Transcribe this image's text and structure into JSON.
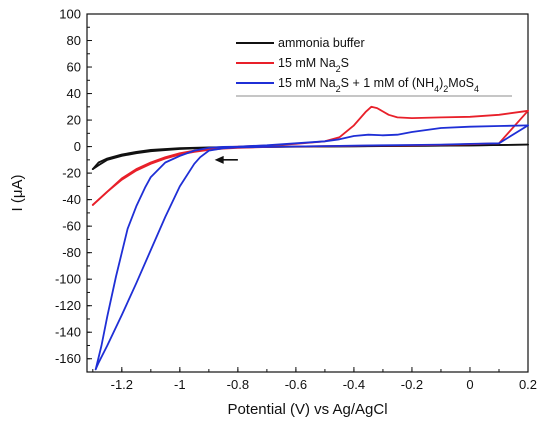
{
  "chart_data": {
    "type": "line",
    "xlabel": "Potential (V) vs Ag/AgCl",
    "ylabel": "I (μA)",
    "xlim": [
      -1.32,
      0.2
    ],
    "ylim": [
      -170,
      100
    ],
    "x_ticks": [
      -1.2,
      -1.0,
      -0.8,
      -0.6,
      -0.4,
      -0.2,
      0,
      0.2
    ],
    "x_tick_labels": [
      "-1.2",
      "-1",
      "-0.8",
      "-0.6",
      "-0.4",
      "-0.2",
      "0",
      "0.2"
    ],
    "y_ticks": [
      -160,
      -140,
      -120,
      -100,
      -80,
      -60,
      -40,
      -20,
      0,
      20,
      40,
      60,
      80,
      100
    ],
    "y_tick_labels": [
      "-160",
      "-140",
      "-120",
      "-100",
      "-80",
      "-60",
      "-40",
      "-20",
      "0",
      "20",
      "40",
      "60",
      "80",
      "100"
    ],
    "grid": false,
    "legend_position": "top-right",
    "annotations": [
      {
        "type": "arrow",
        "direction": "left",
        "x_start": -0.8,
        "x_end": -0.88,
        "y": -10
      }
    ],
    "series": [
      {
        "name": "ammonia buffer",
        "color": "#111111",
        "forward": [
          [
            -1.3,
            -17
          ],
          [
            -1.28,
            -12
          ],
          [
            -1.25,
            -9
          ],
          [
            -1.2,
            -6
          ],
          [
            -1.15,
            -4
          ],
          [
            -1.1,
            -2.5
          ],
          [
            -1.0,
            -1.2
          ],
          [
            -0.9,
            -0.6
          ],
          [
            -0.8,
            -0.2
          ],
          [
            -0.6,
            0.1
          ],
          [
            -0.4,
            0.3
          ],
          [
            -0.2,
            0.6
          ],
          [
            0,
            0.9
          ],
          [
            0.2,
            1.5
          ]
        ],
        "reverse": [
          [
            0.2,
            1.5
          ],
          [
            0,
            0.8
          ],
          [
            -0.2,
            0.5
          ],
          [
            -0.4,
            0.2
          ],
          [
            -0.6,
            -0.1
          ],
          [
            -0.8,
            -0.5
          ],
          [
            -0.9,
            -1
          ],
          [
            -1.0,
            -1.8
          ],
          [
            -1.1,
            -3.5
          ],
          [
            -1.15,
            -5
          ],
          [
            -1.2,
            -7
          ],
          [
            -1.25,
            -10
          ],
          [
            -1.28,
            -14
          ],
          [
            -1.3,
            -17
          ]
        ]
      },
      {
        "name": "15 mM Na2S",
        "color": "#e8202a",
        "forward": [
          [
            -1.3,
            -44
          ],
          [
            -1.25,
            -34
          ],
          [
            -1.2,
            -24
          ],
          [
            -1.15,
            -17
          ],
          [
            -1.1,
            -12
          ],
          [
            -1.05,
            -8
          ],
          [
            -1.0,
            -5
          ],
          [
            -0.95,
            -3
          ],
          [
            -0.9,
            -1.5
          ],
          [
            -0.85,
            -0.5
          ],
          [
            -0.8,
            0
          ],
          [
            -0.7,
            0.8
          ],
          [
            -0.6,
            2
          ],
          [
            -0.5,
            4
          ],
          [
            -0.45,
            7
          ],
          [
            -0.4,
            16
          ],
          [
            -0.36,
            26
          ],
          [
            -0.34,
            30
          ],
          [
            -0.32,
            29
          ],
          [
            -0.28,
            24
          ],
          [
            -0.25,
            22
          ],
          [
            -0.2,
            21.5
          ],
          [
            -0.1,
            22
          ],
          [
            0,
            22.5
          ],
          [
            0.1,
            24
          ],
          [
            0.2,
            27
          ]
        ],
        "reverse": [
          [
            0.2,
            27
          ],
          [
            0.1,
            2.5
          ],
          [
            0,
            1.8
          ],
          [
            -0.1,
            1.3
          ],
          [
            -0.2,
            1
          ],
          [
            -0.3,
            0.8
          ],
          [
            -0.4,
            0.5
          ],
          [
            -0.5,
            0.3
          ],
          [
            -0.6,
            0.1
          ],
          [
            -0.7,
            -0.3
          ],
          [
            -0.8,
            -1
          ],
          [
            -0.85,
            -1.5
          ],
          [
            -0.9,
            -2.5
          ],
          [
            -0.95,
            -4
          ],
          [
            -1.0,
            -6
          ],
          [
            -1.05,
            -9
          ],
          [
            -1.1,
            -13
          ],
          [
            -1.15,
            -18
          ],
          [
            -1.2,
            -25
          ],
          [
            -1.25,
            -34
          ],
          [
            -1.3,
            -44
          ]
        ]
      },
      {
        "name": "15 mM Na2S + 1 mM of (NH4)2MoS4",
        "color": "#1f2fd6",
        "forward": [
          [
            -1.29,
            -168
          ],
          [
            -1.27,
            -150
          ],
          [
            -1.25,
            -128
          ],
          [
            -1.22,
            -98
          ],
          [
            -1.2,
            -80
          ],
          [
            -1.18,
            -62
          ],
          [
            -1.15,
            -45
          ],
          [
            -1.12,
            -31
          ],
          [
            -1.1,
            -23
          ],
          [
            -1.05,
            -12
          ],
          [
            -1.0,
            -7
          ],
          [
            -0.95,
            -3
          ],
          [
            -0.9,
            -1
          ],
          [
            -0.85,
            -0.2
          ],
          [
            -0.8,
            0
          ],
          [
            -0.7,
            1
          ],
          [
            -0.6,
            2.5
          ],
          [
            -0.5,
            4
          ],
          [
            -0.45,
            5.5
          ],
          [
            -0.4,
            8
          ],
          [
            -0.35,
            9
          ],
          [
            -0.3,
            8.5
          ],
          [
            -0.25,
            9
          ],
          [
            -0.2,
            11
          ],
          [
            -0.1,
            14
          ],
          [
            0,
            15
          ],
          [
            0.1,
            15.5
          ],
          [
            0.2,
            16
          ]
        ],
        "reverse": [
          [
            0.2,
            16
          ],
          [
            0.1,
            2.5
          ],
          [
            0,
            2
          ],
          [
            -0.1,
            1.5
          ],
          [
            -0.2,
            1.2
          ],
          [
            -0.3,
            1
          ],
          [
            -0.4,
            0.7
          ],
          [
            -0.5,
            0.4
          ],
          [
            -0.6,
            0.1
          ],
          [
            -0.7,
            -0.2
          ],
          [
            -0.8,
            -0.6
          ],
          [
            -0.85,
            -1.2
          ],
          [
            -0.9,
            -3
          ],
          [
            -0.93,
            -8
          ],
          [
            -0.95,
            -13
          ],
          [
            -1.0,
            -30
          ],
          [
            -1.05,
            -53
          ],
          [
            -1.1,
            -78
          ],
          [
            -1.15,
            -103
          ],
          [
            -1.2,
            -127
          ],
          [
            -1.25,
            -150
          ],
          [
            -1.28,
            -163
          ],
          [
            -1.29,
            -168
          ]
        ]
      }
    ]
  }
}
